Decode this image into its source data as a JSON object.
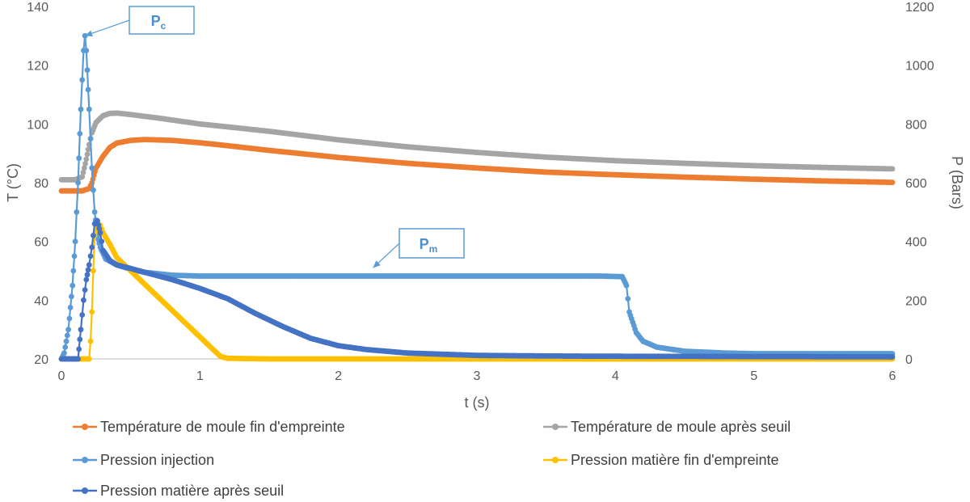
{
  "chart_data": {
    "type": "line",
    "xlabel": "t (s)",
    "ylabel_left": "T (°C)",
    "ylabel_right": "P (Bars)",
    "xlim": [
      0,
      6
    ],
    "ylim_left": [
      20,
      140
    ],
    "ylim_right": [
      0,
      1200
    ],
    "x_ticks": [
      "0",
      "1",
      "2",
      "3",
      "4",
      "5",
      "6"
    ],
    "y_left_ticks": [
      "20",
      "40",
      "60",
      "80",
      "100",
      "120",
      "140"
    ],
    "y_right_ticks": [
      "0",
      "200",
      "400",
      "600",
      "800",
      "1000",
      "1200"
    ],
    "grid": false,
    "legend_position": "bottom",
    "annotations": [
      {
        "label": "P",
        "subscript": "c",
        "points_to": {
          "x": 0.17,
          "y_right": 1100
        }
      },
      {
        "label": "P",
        "subscript": "m",
        "points_to": {
          "x": 2.25,
          "y_right": 310
        }
      }
    ],
    "series": [
      {
        "name": "Température de moule fin d'empreinte",
        "axis": "left",
        "color": "#ed7d31",
        "points": [
          [
            0,
            77.2
          ],
          [
            0.15,
            77.2
          ],
          [
            0.2,
            78
          ],
          [
            0.22,
            80
          ],
          [
            0.25,
            85
          ],
          [
            0.3,
            89
          ],
          [
            0.35,
            92
          ],
          [
            0.4,
            93.5
          ],
          [
            0.5,
            94.4
          ],
          [
            0.6,
            94.7
          ],
          [
            0.8,
            94.4
          ],
          [
            1,
            93.6
          ],
          [
            1.2,
            92.6
          ],
          [
            1.5,
            91
          ],
          [
            2,
            88.6
          ],
          [
            2.5,
            86.6
          ],
          [
            3,
            85
          ],
          [
            3.5,
            83.6
          ],
          [
            4,
            82.7
          ],
          [
            4.5,
            81.9
          ],
          [
            5,
            81.2
          ],
          [
            5.5,
            80.6
          ],
          [
            6,
            80.1
          ]
        ]
      },
      {
        "name": "Température de moule après seuil",
        "axis": "left",
        "color": "#a5a5a5",
        "points": [
          [
            0,
            81
          ],
          [
            0.1,
            81
          ],
          [
            0.15,
            82
          ],
          [
            0.18,
            88
          ],
          [
            0.2,
            93
          ],
          [
            0.22,
            97
          ],
          [
            0.25,
            100.5
          ],
          [
            0.3,
            102.8
          ],
          [
            0.35,
            103.6
          ],
          [
            0.4,
            103.7
          ],
          [
            0.5,
            103.2
          ],
          [
            0.7,
            102
          ],
          [
            1,
            100
          ],
          [
            1.5,
            97.5
          ],
          [
            2,
            94.6
          ],
          [
            2.5,
            92.2
          ],
          [
            3,
            90.3
          ],
          [
            3.5,
            88.7
          ],
          [
            4,
            87.5
          ],
          [
            4.5,
            86.6
          ],
          [
            5,
            85.8
          ],
          [
            5.5,
            85.2
          ],
          [
            6,
            84.7
          ]
        ]
      },
      {
        "name": "Pression injection",
        "axis": "right",
        "color": "#5b9bd5",
        "points": [
          [
            0,
            0
          ],
          [
            0.02,
            20
          ],
          [
            0.05,
            100
          ],
          [
            0.08,
            250
          ],
          [
            0.1,
            400
          ],
          [
            0.12,
            600
          ],
          [
            0.14,
            850
          ],
          [
            0.16,
            1050
          ],
          [
            0.17,
            1100
          ],
          [
            0.18,
            1050
          ],
          [
            0.2,
            850
          ],
          [
            0.22,
            650
          ],
          [
            0.24,
            500
          ],
          [
            0.26,
            420
          ],
          [
            0.28,
            380
          ],
          [
            0.32,
            340
          ],
          [
            0.4,
            320
          ],
          [
            0.5,
            305
          ],
          [
            0.6,
            295
          ],
          [
            0.8,
            285
          ],
          [
            1,
            282
          ],
          [
            1.5,
            282
          ],
          [
            2,
            282
          ],
          [
            2.5,
            282
          ],
          [
            3,
            282
          ],
          [
            3.5,
            282
          ],
          [
            3.9,
            282
          ],
          [
            4.05,
            280
          ],
          [
            4.08,
            250
          ],
          [
            4.1,
            160
          ],
          [
            4.15,
            90
          ],
          [
            4.2,
            60
          ],
          [
            4.3,
            40
          ],
          [
            4.5,
            26
          ],
          [
            4.8,
            20
          ],
          [
            5,
            18
          ],
          [
            5.5,
            18
          ],
          [
            6,
            18
          ]
        ]
      },
      {
        "name": "Pression matière fin d'empreinte",
        "axis": "right",
        "color": "#ffc000",
        "points": [
          [
            0,
            0
          ],
          [
            0.2,
            0
          ],
          [
            0.21,
            60
          ],
          [
            0.22,
            160
          ],
          [
            0.23,
            300
          ],
          [
            0.24,
            420
          ],
          [
            0.26,
            460
          ],
          [
            0.28,
            455
          ],
          [
            0.3,
            430
          ],
          [
            0.35,
            390
          ],
          [
            0.4,
            345
          ],
          [
            0.5,
            300
          ],
          [
            0.6,
            255
          ],
          [
            0.7,
            210
          ],
          [
            0.8,
            165
          ],
          [
            0.9,
            120
          ],
          [
            1,
            75
          ],
          [
            1.1,
            30
          ],
          [
            1.15,
            8
          ],
          [
            1.2,
            2
          ],
          [
            1.5,
            0
          ],
          [
            2,
            0
          ],
          [
            2.5,
            0
          ],
          [
            3,
            0
          ],
          [
            4,
            0
          ],
          [
            5,
            0
          ],
          [
            6,
            0
          ]
        ]
      },
      {
        "name": "Pression matière après seuil",
        "axis": "right",
        "color": "#4472c4",
        "points": [
          [
            0,
            0
          ],
          [
            0.12,
            0
          ],
          [
            0.14,
            100
          ],
          [
            0.16,
            200
          ],
          [
            0.18,
            270
          ],
          [
            0.2,
            320
          ],
          [
            0.22,
            380
          ],
          [
            0.24,
            460
          ],
          [
            0.26,
            470
          ],
          [
            0.28,
            430
          ],
          [
            0.3,
            370
          ],
          [
            0.35,
            335
          ],
          [
            0.4,
            320
          ],
          [
            0.5,
            308
          ],
          [
            0.6,
            295
          ],
          [
            0.8,
            270
          ],
          [
            1,
            240
          ],
          [
            1.2,
            205
          ],
          [
            1.4,
            155
          ],
          [
            1.6,
            110
          ],
          [
            1.8,
            70
          ],
          [
            2,
            45
          ],
          [
            2.2,
            32
          ],
          [
            2.5,
            20
          ],
          [
            3,
            12
          ],
          [
            3.5,
            10
          ],
          [
            4,
            9
          ],
          [
            5,
            8
          ],
          [
            6,
            7
          ]
        ]
      }
    ]
  }
}
